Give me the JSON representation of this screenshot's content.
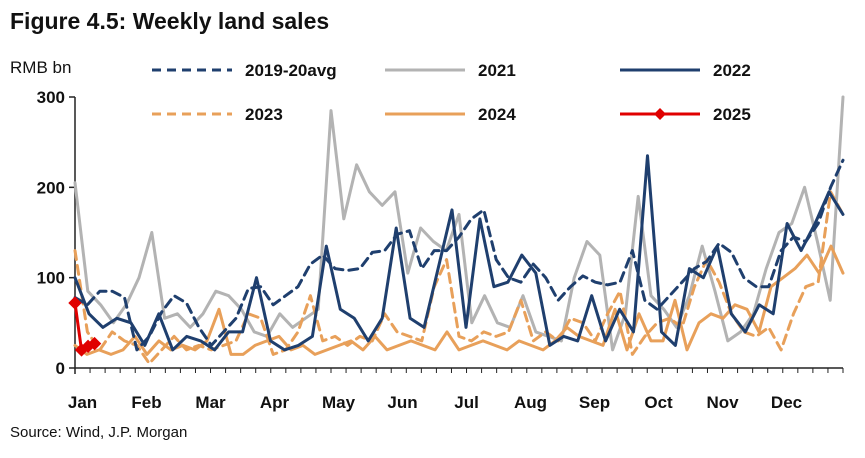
{
  "title": "Figure 4.5: Weekly land sales",
  "unit_label": "RMB bn",
  "source": "Source: Wind, J.P. Morgan",
  "chart_data": {
    "type": "line",
    "title": "Figure 4.5: Weekly land sales",
    "ylabel": "RMB bn",
    "ylim": [
      0,
      300
    ],
    "yticks": [
      0,
      100,
      200,
      300
    ],
    "x_unit": "week of year",
    "xlim": [
      1,
      52
    ],
    "month_labels": [
      "Jan",
      "Feb",
      "Mar",
      "Apr",
      "May",
      "Jun",
      "Jul",
      "Aug",
      "Sep",
      "Oct",
      "Nov",
      "Dec"
    ],
    "grid": false,
    "legend_position": "top",
    "series": [
      {
        "name": "2019-20avg",
        "color": "#1f3f6e",
        "dash": "dashed",
        "values": [
          78,
          70,
          85,
          85,
          78,
          20,
          35,
          62,
          80,
          72,
          45,
          25,
          40,
          55,
          88,
          90,
          70,
          80,
          90,
          115,
          125,
          110,
          108,
          110,
          128,
          130,
          148,
          152,
          110,
          130,
          130,
          145,
          165,
          175,
          120,
          100,
          95,
          115,
          100,
          75,
          90,
          102,
          95,
          92,
          95,
          130,
          75,
          65,
          80,
          95,
          110,
          118,
          138,
          128,
          100,
          90,
          90,
          130,
          145,
          140,
          160,
          200,
          230
        ]
      },
      {
        "name": "2021",
        "color": "#b3b3b3",
        "dash": "solid",
        "values": [
          205,
          85,
          70,
          50,
          70,
          100,
          150,
          55,
          60,
          45,
          60,
          85,
          80,
          65,
          40,
          35,
          60,
          45,
          55,
          65,
          285,
          165,
          225,
          195,
          180,
          195,
          105,
          155,
          140,
          130,
          170,
          50,
          80,
          50,
          45,
          80,
          40,
          35,
          30,
          100,
          140,
          125,
          20,
          60,
          190,
          80,
          65,
          45,
          80,
          135,
          85,
          30,
          40,
          60,
          110,
          150,
          160,
          200,
          140,
          75,
          300
        ]
      },
      {
        "name": "2022",
        "color": "#1f3f6e",
        "dash": "solid",
        "values": [
          100,
          60,
          45,
          55,
          50,
          25,
          60,
          20,
          35,
          30,
          20,
          40,
          40,
          100,
          30,
          20,
          25,
          35,
          135,
          65,
          55,
          30,
          55,
          155,
          55,
          45,
          110,
          175,
          45,
          165,
          90,
          95,
          125,
          105,
          25,
          35,
          30,
          80,
          30,
          65,
          40,
          235,
          40,
          25,
          110,
          100,
          135,
          60,
          40,
          70,
          60,
          160,
          130,
          160,
          195,
          170
        ]
      },
      {
        "name": "2023",
        "color": "#e8a05a",
        "dash": "dashed",
        "values": [
          130,
          40,
          20,
          40,
          30,
          25,
          5,
          20,
          35,
          20,
          25,
          20,
          25,
          30,
          60,
          55,
          15,
          20,
          40,
          80,
          30,
          35,
          25,
          35,
          30,
          60,
          40,
          35,
          30,
          90,
          120,
          35,
          30,
          40,
          35,
          40,
          75,
          30,
          40,
          30,
          55,
          50,
          30,
          60,
          85,
          15,
          35,
          50,
          55,
          45,
          90,
          120,
          95,
          60,
          40,
          35,
          45,
          20,
          60,
          90,
          95,
          195,
          170
        ]
      },
      {
        "name": "2024",
        "color": "#e8a05a",
        "dash": "solid",
        "values": [
          25,
          15,
          20,
          15,
          20,
          35,
          15,
          30,
          20,
          25,
          20,
          30,
          65,
          15,
          15,
          25,
          30,
          35,
          20,
          25,
          15,
          20,
          25,
          30,
          20,
          35,
          20,
          25,
          30,
          25,
          20,
          40,
          20,
          25,
          30,
          25,
          20,
          30,
          25,
          20,
          30,
          45,
          35,
          30,
          25,
          65,
          20,
          60,
          30,
          30,
          75,
          20,
          50,
          60,
          55,
          70,
          65,
          40,
          90,
          100,
          110,
          125,
          105,
          135,
          105
        ]
      },
      {
        "name": "2025",
        "color": "#e00000",
        "dash": "solid",
        "marker": "diamond",
        "values": [
          72,
          20,
          24,
          27
        ]
      }
    ]
  }
}
